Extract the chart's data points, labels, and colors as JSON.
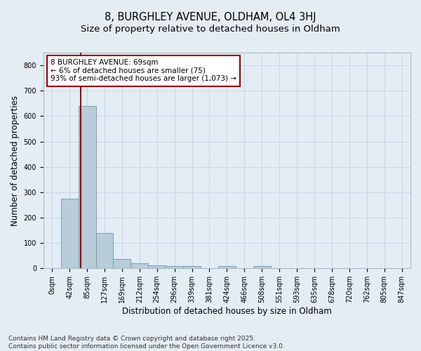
{
  "title_line1": "8, BURGHLEY AVENUE, OLDHAM, OL4 3HJ",
  "title_line2": "Size of property relative to detached houses in Oldham",
  "xlabel": "Distribution of detached houses by size in Oldham",
  "ylabel": "Number of detached properties",
  "categories": [
    "0sqm",
    "42sqm",
    "85sqm",
    "127sqm",
    "169sqm",
    "212sqm",
    "254sqm",
    "296sqm",
    "339sqm",
    "381sqm",
    "424sqm",
    "466sqm",
    "508sqm",
    "551sqm",
    "593sqm",
    "635sqm",
    "678sqm",
    "720sqm",
    "762sqm",
    "805sqm",
    "847sqm"
  ],
  "values": [
    2,
    275,
    640,
    140,
    38,
    20,
    12,
    8,
    8,
    0,
    8,
    0,
    8,
    0,
    0,
    0,
    0,
    0,
    0,
    0,
    0
  ],
  "bar_color": "#B8CDD8",
  "bar_edge_color": "#6699BB",
  "vline_x": 1.65,
  "vline_color": "#990000",
  "annotation_text": "8 BURGHLEY AVENUE: 69sqm\n← 6% of detached houses are smaller (75)\n93% of semi-detached houses are larger (1,073) →",
  "annotation_box_color": "#990000",
  "annotation_facecolor": "white",
  "ylim": [
    0,
    850
  ],
  "yticks": [
    0,
    100,
    200,
    300,
    400,
    500,
    600,
    700,
    800
  ],
  "grid_color": "#C8D8E8",
  "bg_color": "#E4ECF4",
  "footer_text": "Contains HM Land Registry data © Crown copyright and database right 2025.\nContains public sector information licensed under the Open Government Licence v3.0.",
  "title_fontsize": 10.5,
  "subtitle_fontsize": 9.5,
  "axis_label_fontsize": 8.5,
  "tick_fontsize": 7,
  "footer_fontsize": 6.5,
  "ann_fontsize": 7.5
}
